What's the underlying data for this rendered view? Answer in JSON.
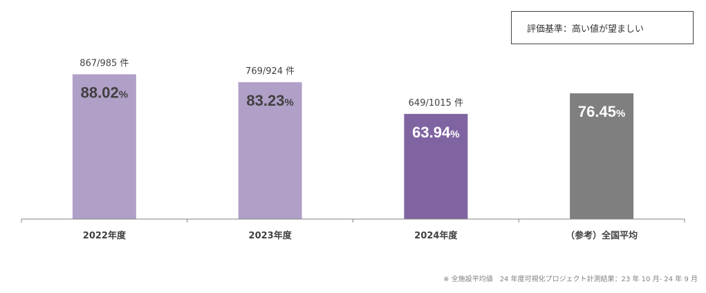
{
  "criteria_label": "評価基準：高い値が望ましい",
  "footnote": "※ 全施設平均値　24 年度可視化プロジェクト計測結果：23 年 10 月- 24 年 9 月",
  "colors": {
    "light_purple": "#b0a0c8",
    "dark_purple": "#8064a2",
    "gray": "#7f7f7f",
    "axis": "#808080"
  },
  "chart_data": {
    "type": "bar",
    "categories": [
      "2022年度",
      "2023年度",
      "2024年度",
      "（参考）全国平均"
    ],
    "values": [
      88.02,
      83.23,
      63.94,
      76.45
    ],
    "value_labels": [
      "88.02",
      "83.23",
      "63.94",
      "76.45"
    ],
    "value_unit": "%",
    "count_labels": [
      "867/985 件",
      "769/924 件",
      "649/1015 件",
      ""
    ],
    "bar_colors": [
      "#b0a0c8",
      "#b0a0c8",
      "#8064a2",
      "#7f7f7f"
    ],
    "value_label_colors": [
      "#404040",
      "#404040",
      "#ffffff",
      "#ffffff"
    ],
    "ylim": [
      0,
      100
    ]
  }
}
